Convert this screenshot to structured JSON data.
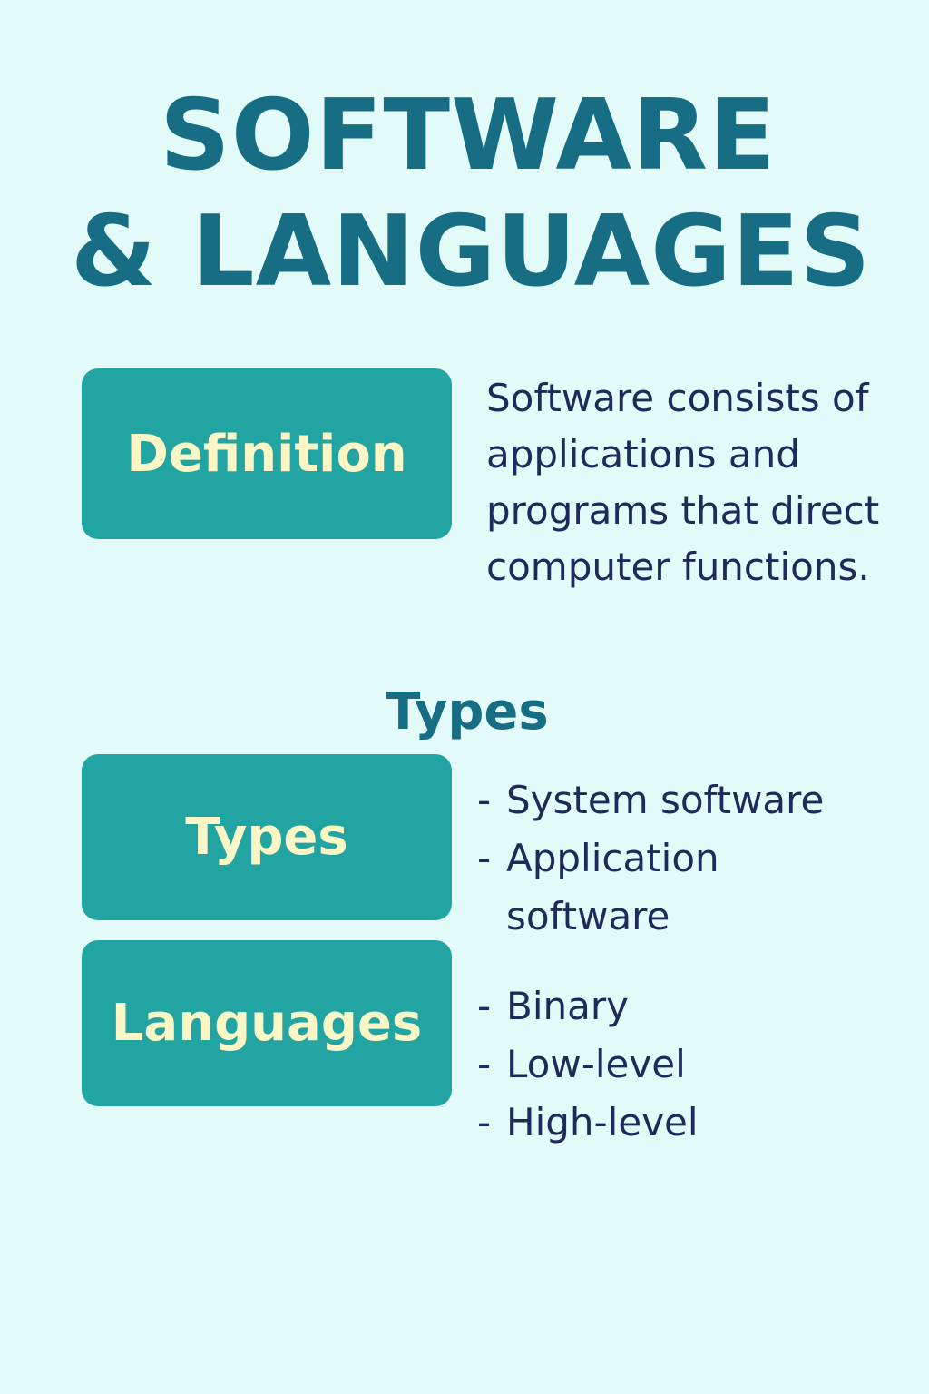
{
  "title": {
    "line1": "SOFTWARE",
    "line2": "& LANGUAGES"
  },
  "definition": {
    "label": "Definition",
    "text": "Software consists of applications and programs that direct computer functions."
  },
  "types_heading": "Types",
  "types": {
    "label": "Types",
    "bullet": "-",
    "items": [
      "System software",
      "Application software"
    ]
  },
  "languages": {
    "label": "Languages",
    "bullet": "-",
    "items": [
      "Binary",
      "Low-level",
      "High-level"
    ]
  },
  "colors": {
    "background": "#e2fbf8",
    "title": "#176e84",
    "box": "#21a4a2",
    "box_text": "#fbf6c5",
    "body_text": "#1c2b5a"
  }
}
